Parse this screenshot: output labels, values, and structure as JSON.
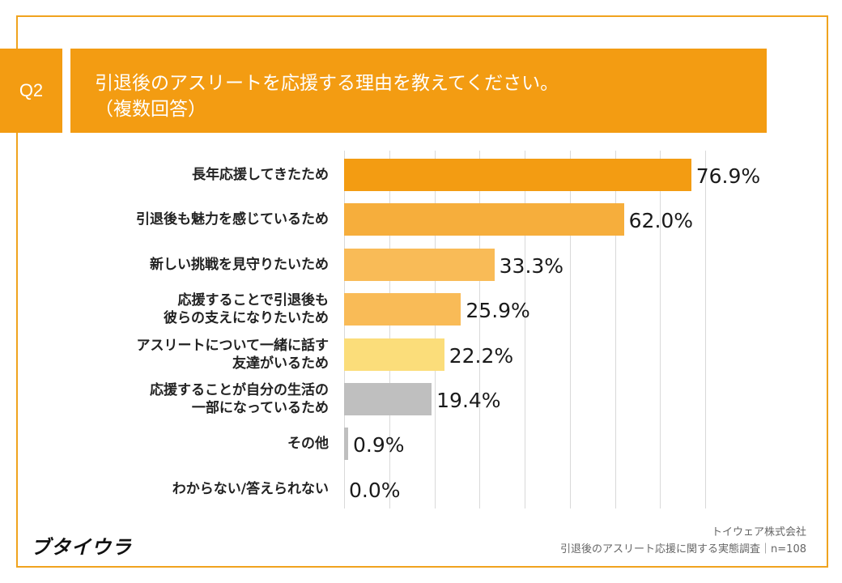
{
  "header": {
    "q_label": "Q2",
    "title_line1": "引退後のアスリートを応援する理由を教えてください。",
    "title_line2": "（複数回答）"
  },
  "chart_data": {
    "type": "bar",
    "orientation": "horizontal",
    "categories": [
      "長年応援してきたため",
      "引退後も魅力を感じているため",
      "新しい挑戦を見守りたいため",
      "応援することで引退後も\n彼らの支えになりたいため",
      "アスリートについて一緒に話す\n友達がいるため",
      "応援することが自分の生活の\n一部になっているため",
      "その他",
      "わからない/答えられない"
    ],
    "values": [
      76.9,
      62.0,
      33.3,
      25.9,
      22.2,
      19.4,
      0.9,
      0.0
    ],
    "value_labels": [
      "76.9%",
      "62.0%",
      "33.3%",
      "25.9%",
      "22.2%",
      "19.4%",
      "0.9%",
      "0.0%"
    ],
    "colors": [
      "#f39c12",
      "#f6ae3c",
      "#f9bb57",
      "#f9bb57",
      "#fbdd7a",
      "#bfbfbf",
      "#bfbfbf",
      "#bfbfbf"
    ],
    "xlim": [
      0,
      80
    ],
    "grid": true
  },
  "footer": {
    "logo": "ブタイウラ",
    "company": "トイウェア株式会社",
    "survey": "引退後のアスリート応援に関する実態調査｜n=108"
  }
}
